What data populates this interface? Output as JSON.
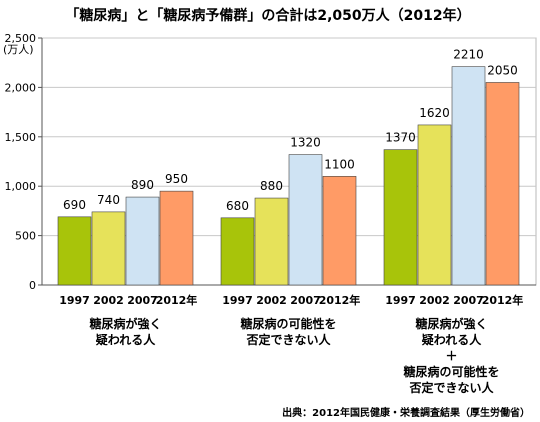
{
  "chart_data": {
    "type": "bar",
    "title": "「糖尿病」と「糖尿病予備群」の合計は2,050万人（2012年）",
    "ylabel": "(万人)",
    "ylim": [
      0,
      2500
    ],
    "yticks": [
      0,
      500,
      1000,
      1500,
      2000,
      2500
    ],
    "ytick_labels": [
      "0",
      "500",
      "1,000",
      "1,500",
      "2,000",
      "2,500"
    ],
    "grid": true,
    "series": [
      {
        "name": "1997",
        "color": "#a8c40a",
        "values": [
          690,
          680,
          1370
        ]
      },
      {
        "name": "2002",
        "color": "#e6e25a",
        "values": [
          740,
          880,
          1620
        ]
      },
      {
        "name": "2007",
        "color": "#cfe3f3",
        "values": [
          890,
          1320,
          2210
        ]
      },
      {
        "name": "2012",
        "color": "#ff9b66",
        "values": [
          950,
          1100,
          2050
        ]
      }
    ],
    "x_tick_labels": [
      "1997",
      "2002",
      "2007",
      "2012年"
    ],
    "groups": [
      {
        "lines": [
          "糖尿病が強く",
          "疑われる人"
        ]
      },
      {
        "lines": [
          "糖尿病の可能性を",
          "否定できない人"
        ]
      },
      {
        "lines": [
          "糖尿病が強く",
          "疑われる人",
          "＋",
          "糖尿病の可能性を",
          "否定できない人"
        ]
      }
    ],
    "source": "出典：2012年国民健康・栄養調査結果（厚生労働省）"
  }
}
